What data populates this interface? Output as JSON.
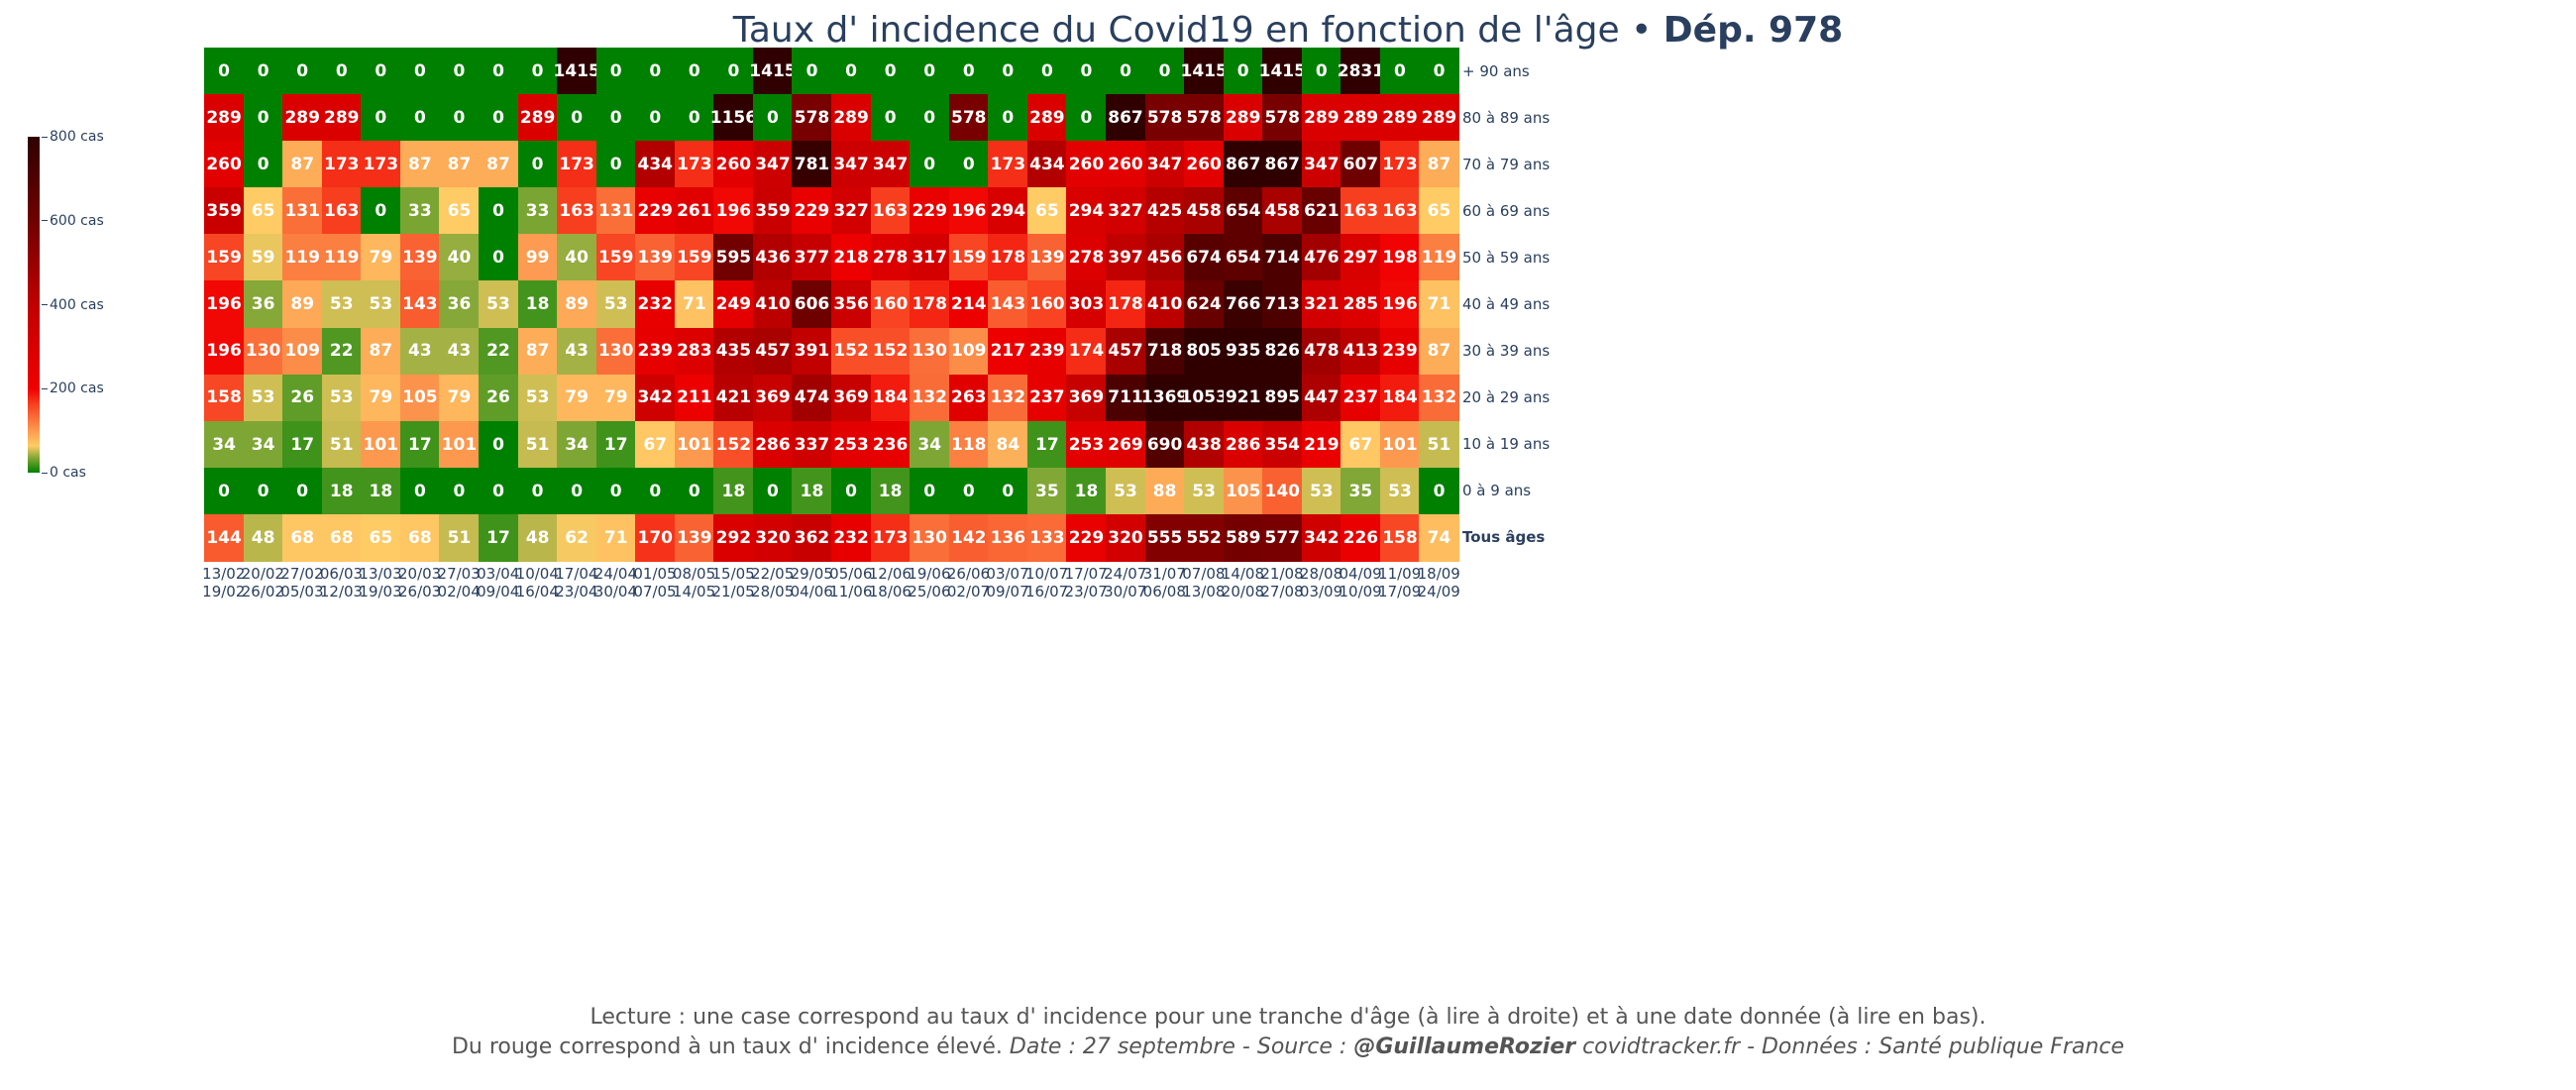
{
  "chart_data": {
    "type": "heatmap",
    "title": "Taux d' incidence du Covid19 en fonction de l'âge",
    "title_sep": " • ",
    "title_bold": "Dép. 978",
    "rows": [
      "+ 90 ans",
      "80 à 89 ans",
      "70 à 79 ans",
      "60 à 69 ans",
      "50 à 59 ans",
      "40 à 49 ans",
      "30 à 39 ans",
      "20 à 29 ans",
      "10 à 19 ans",
      "0 à 9 ans",
      "Tous âges"
    ],
    "x_start": [
      "13/02",
      "20/02",
      "27/02",
      "06/03",
      "13/03",
      "20/03",
      "27/03",
      "03/04",
      "10/04",
      "17/04",
      "24/04",
      "01/05",
      "08/05",
      "15/05",
      "22/05",
      "29/05",
      "05/06",
      "12/06",
      "19/06",
      "26/06",
      "03/07",
      "10/07",
      "17/07",
      "24/07",
      "31/07",
      "07/08",
      "14/08",
      "21/08",
      "28/08",
      "04/09",
      "11/09",
      "18/09"
    ],
    "x_end": [
      "19/02",
      "26/02",
      "05/03",
      "12/03",
      "19/03",
      "26/03",
      "02/04",
      "09/04",
      "16/04",
      "23/04",
      "30/04",
      "07/05",
      "14/05",
      "21/05",
      "28/05",
      "04/06",
      "11/06",
      "18/06",
      "25/06",
      "02/07",
      "09/07",
      "16/07",
      "23/07",
      "30/07",
      "06/08",
      "13/08",
      "20/08",
      "27/08",
      "03/09",
      "10/09",
      "17/09",
      "24/09"
    ],
    "values": [
      [
        0,
        0,
        0,
        0,
        0,
        0,
        0,
        0,
        0,
        1415,
        0,
        0,
        0,
        0,
        1415,
        0,
        0,
        0,
        0,
        0,
        0,
        0,
        0,
        0,
        0,
        1415,
        0,
        1415,
        0,
        2831,
        0,
        0
      ],
      [
        289,
        0,
        289,
        289,
        0,
        0,
        0,
        0,
        289,
        0,
        0,
        0,
        0,
        1156,
        0,
        578,
        289,
        0,
        0,
        578,
        0,
        289,
        0,
        867,
        578,
        578,
        289,
        578,
        289,
        289,
        289,
        289
      ],
      [
        260,
        0,
        87,
        173,
        173,
        87,
        87,
        87,
        0,
        173,
        0,
        434,
        173,
        260,
        347,
        781,
        347,
        347,
        0,
        0,
        173,
        434,
        260,
        260,
        347,
        260,
        867,
        867,
        347,
        607,
        173,
        87
      ],
      [
        359,
        65,
        131,
        163,
        0,
        33,
        65,
        0,
        33,
        163,
        131,
        229,
        261,
        196,
        359,
        229,
        327,
        163,
        229,
        196,
        294,
        65,
        294,
        327,
        425,
        458,
        654,
        458,
        621,
        163,
        163,
        65
      ],
      [
        159,
        59,
        119,
        119,
        79,
        139,
        40,
        0,
        99,
        40,
        159,
        139,
        159,
        595,
        436,
        377,
        218,
        278,
        317,
        159,
        178,
        139,
        278,
        397,
        456,
        674,
        654,
        714,
        476,
        297,
        198,
        119
      ],
      [
        196,
        36,
        89,
        53,
        53,
        143,
        36,
        53,
        18,
        89,
        53,
        232,
        71,
        249,
        410,
        606,
        356,
        160,
        178,
        214,
        143,
        160,
        303,
        178,
        410,
        624,
        766,
        713,
        321,
        285,
        196,
        71
      ],
      [
        196,
        130,
        109,
        22,
        87,
        43,
        43,
        22,
        87,
        43,
        130,
        239,
        283,
        435,
        457,
        391,
        152,
        152,
        130,
        109,
        217,
        239,
        174,
        457,
        718,
        805,
        935,
        826,
        478,
        413,
        239,
        87
      ],
      [
        158,
        53,
        26,
        53,
        79,
        105,
        79,
        26,
        53,
        79,
        79,
        342,
        211,
        421,
        369,
        474,
        369,
        184,
        132,
        263,
        132,
        237,
        369,
        711,
        1369,
        1053,
        921,
        895,
        447,
        237,
        184,
        132
      ],
      [
        34,
        34,
        17,
        51,
        101,
        17,
        101,
        0,
        51,
        34,
        17,
        67,
        101,
        152,
        286,
        337,
        253,
        236,
        34,
        118,
        84,
        17,
        253,
        269,
        690,
        438,
        286,
        354,
        219,
        67,
        101,
        51
      ],
      [
        0,
        0,
        0,
        18,
        18,
        0,
        0,
        0,
        0,
        0,
        0,
        0,
        0,
        18,
        0,
        18,
        0,
        18,
        0,
        0,
        0,
        35,
        18,
        53,
        88,
        53,
        105,
        140,
        53,
        35,
        53,
        0
      ],
      [
        144,
        48,
        68,
        68,
        65,
        68,
        51,
        17,
        48,
        62,
        71,
        170,
        139,
        292,
        320,
        362,
        232,
        173,
        130,
        142,
        136,
        133,
        229,
        320,
        555,
        552,
        589,
        577,
        342,
        226,
        158,
        74
      ]
    ],
    "zlim": [
      0,
      800
    ],
    "colorbar_ticks": [
      "0 cas",
      "200 cas",
      "400 cas",
      "600 cas",
      "800 cas"
    ],
    "colorbar_tick_values": [
      0,
      200,
      400,
      600,
      800
    ],
    "colorscale": [
      [
        0,
        "#008000"
      ],
      [
        0.045,
        "#85a838"
      ],
      [
        0.08,
        "#ffcc66"
      ],
      [
        0.125,
        "#fc9a50"
      ],
      [
        0.2,
        "#f84422"
      ],
      [
        0.25,
        "#f00000"
      ],
      [
        0.5,
        "#c00000"
      ],
      [
        0.75,
        "#700000"
      ],
      [
        1,
        "#300000"
      ]
    ]
  },
  "footer": {
    "line1": "Lecture : une case correspond au taux d' incidence pour une tranche d'âge (à lire à droite) et à une date donnée (à lire en bas).",
    "line2_a": "Du rouge correspond à un taux d' incidence élevé.  ",
    "line2_b": "Date : 27 septembre - Source : ",
    "line2_author": "@GuillaumeRozier",
    "line2_c": " covidtracker.fr - Données : Santé publique France"
  }
}
